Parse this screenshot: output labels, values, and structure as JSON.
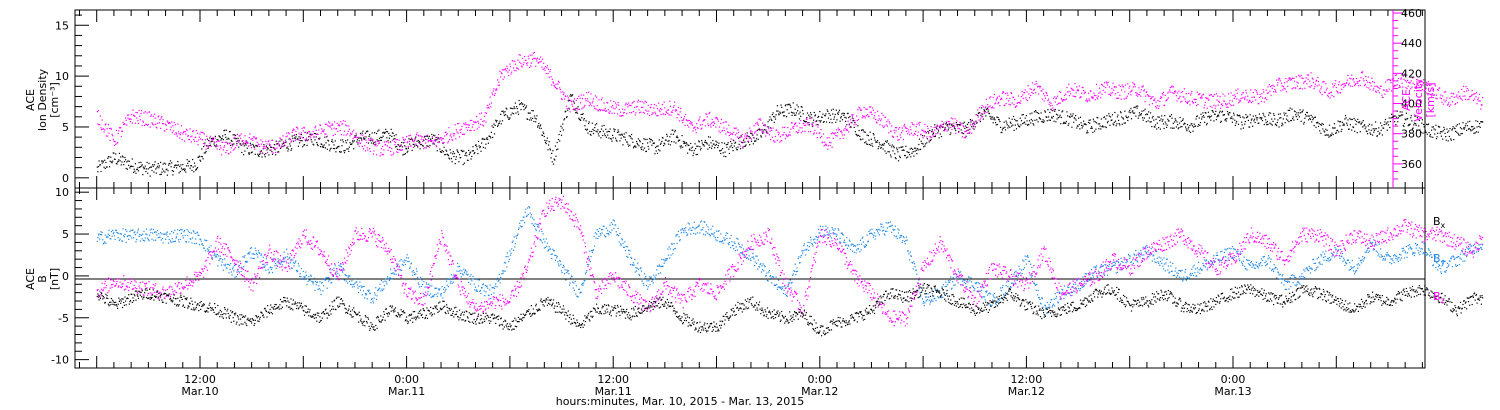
{
  "chart_data": [
    {
      "type": "scatter",
      "panel": "top",
      "ylabel_left": [
        "ACE",
        "Ion Density",
        "[cm⁻³]"
      ],
      "ylabel_right": [
        "ACE",
        "Velocity",
        "[km/s]"
      ],
      "left_ylim": [
        -1,
        16.5
      ],
      "left_ticks": [
        0,
        5,
        10,
        15
      ],
      "right_ylim": [
        344,
        462
      ],
      "right_ticks": [
        360,
        380,
        400,
        420,
        440,
        460
      ],
      "series": [
        {
          "axis": "left",
          "color": "#000000",
          "x_hours": [
            0,
            2,
            4,
            6,
            8,
            10,
            11.5,
            13,
            15,
            17,
            19,
            21,
            23,
            25,
            27,
            29,
            30.5,
            32,
            34,
            35.5,
            37,
            39,
            41,
            43,
            45,
            47,
            49,
            51,
            53,
            55,
            57,
            59,
            61,
            63,
            65,
            67,
            69,
            71,
            73,
            75,
            77,
            79,
            81,
            83,
            85,
            87,
            89,
            91,
            93,
            95,
            97,
            99,
            101,
            103,
            105,
            107,
            109,
            111,
            113,
            115,
            117,
            119,
            121,
            123,
            125,
            127,
            129,
            131,
            133,
            135,
            137,
            139,
            141,
            143,
            145,
            147,
            149,
            151,
            153,
            155,
            157,
            159,
            161
          ],
          "y": [
            0.9,
            2.0,
            1.3,
            0.9,
            1.0,
            1.1,
            1.4,
            3.5,
            4.2,
            3.0,
            2.7,
            3.0,
            3.6,
            4.0,
            3.4,
            3.1,
            4.0,
            4.0,
            4.3,
            3.0,
            3.5,
            3.8,
            2.2,
            2.0,
            3.5,
            6.0,
            7.0,
            6.0,
            2.0,
            8.0,
            5.0,
            4.5,
            4.0,
            3.5,
            3.0,
            4.2,
            2.8,
            3.5,
            2.8,
            3.7,
            4.2,
            6.5,
            6.8,
            5.8,
            6.2,
            6.0,
            4.2,
            3.5,
            2.3,
            2.8,
            4.5,
            5.0,
            4.8,
            6.5,
            5.2,
            5.5,
            6.0,
            6.3,
            5.8,
            5.0,
            5.6,
            6.0,
            6.5,
            5.5,
            5.6,
            5.2,
            6.0,
            6.2,
            5.5,
            6.0,
            5.6,
            6.4,
            5.8,
            4.6,
            5.5,
            5.0,
            4.8,
            6.0,
            5.5,
            4.6,
            4.3,
            5.0,
            5.2
          ]
        },
        {
          "axis": "right",
          "color": "#ff00ff",
          "x_hours": [
            0,
            2,
            4,
            6,
            8,
            10,
            12,
            13,
            15,
            17,
            19,
            21,
            23,
            25,
            27,
            29,
            31,
            33,
            35,
            37,
            39,
            41,
            43,
            45,
            47,
            49,
            51,
            53,
            55,
            57,
            59,
            61,
            63,
            65,
            67,
            69,
            71,
            73,
            75,
            77,
            79,
            81,
            83,
            85,
            87,
            89,
            91,
            93,
            95,
            97,
            99,
            101,
            103,
            105,
            107,
            109,
            111,
            113,
            115,
            117,
            119,
            121,
            123,
            125,
            127,
            129,
            131,
            133,
            135,
            137,
            139,
            141,
            143,
            145,
            147,
            149,
            151,
            153,
            155,
            157,
            159,
            161
          ],
          "y": [
            392,
            376,
            392,
            390,
            386,
            380,
            377,
            374,
            370,
            378,
            372,
            372,
            380,
            380,
            384,
            384,
            374,
            370,
            372,
            376,
            374,
            380,
            386,
            390,
            420,
            428,
            430,
            416,
            398,
            404,
            398,
            396,
            398,
            396,
            398,
            384,
            390,
            384,
            376,
            386,
            378,
            384,
            386,
            374,
            384,
            396,
            390,
            380,
            384,
            380,
            388,
            380,
            398,
            404,
            402,
            412,
            400,
            410,
            406,
            410,
            408,
            410,
            400,
            408,
            404,
            402,
            402,
            406,
            404,
            412,
            414,
            416,
            408,
            414,
            418,
            408,
            416,
            414,
            410,
            402,
            408,
            400
          ]
        }
      ]
    },
    {
      "type": "scatter",
      "panel": "bottom",
      "ylabel_left": [
        "ACE",
        "B",
        "[nT]"
      ],
      "ylim": [
        -11,
        10.5
      ],
      "yticks": [
        -10,
        -5,
        0,
        5,
        10
      ],
      "zero_line": true,
      "legend_placement": "right",
      "x_tick_labels": [
        {
          "x_hours": 12,
          "lines": [
            "12:00",
            "Mar.10"
          ]
        },
        {
          "x_hours": 36,
          "lines": [
            "0:00",
            "Mar.11"
          ]
        },
        {
          "x_hours": 60,
          "lines": [
            "12:00",
            "Mar.11"
          ]
        },
        {
          "x_hours": 84,
          "lines": [
            "0:00",
            "Mar.12"
          ]
        },
        {
          "x_hours": 108,
          "lines": [
            "12:00",
            "Mar.12"
          ]
        },
        {
          "x_hours": 132,
          "lines": [
            "0:00",
            "Mar.13"
          ]
        }
      ],
      "xlabel": "hours:minutes, Mar. 10, 2015 - Mar. 13, 2015",
      "series": [
        {
          "name": "Bx",
          "color": "#000000",
          "x_hours": [
            0,
            2,
            4,
            6,
            8,
            10,
            12,
            14,
            16,
            18,
            20,
            22,
            24,
            26,
            28,
            30,
            32,
            34,
            36,
            38,
            40,
            42,
            44,
            46,
            48,
            50,
            52,
            54,
            56,
            58,
            60,
            62,
            64,
            66,
            68,
            70,
            72,
            74,
            76,
            78,
            80,
            82,
            84,
            86,
            88,
            90,
            92,
            94,
            96,
            98,
            100,
            102,
            104,
            106,
            108,
            110,
            112,
            114,
            116,
            118,
            120,
            122,
            124,
            126,
            128,
            130,
            132,
            134,
            136,
            138,
            140,
            142,
            144,
            146,
            148,
            150,
            152,
            154,
            156,
            158,
            160,
            161
          ],
          "y": [
            -2,
            -3.5,
            -2.5,
            -2,
            -2.5,
            -3,
            -3.5,
            -4,
            -5,
            -5.5,
            -4,
            -3,
            -4,
            -5,
            -3,
            -4.5,
            -6,
            -4,
            -5,
            -4.5,
            -3.5,
            -4.5,
            -5,
            -5,
            -6,
            -4.5,
            -3,
            -4,
            -6,
            -4,
            -4,
            -4.5,
            -3.5,
            -3,
            -5,
            -6,
            -6,
            -4,
            -3,
            -4.5,
            -5,
            -4.5,
            -6.5,
            -5.5,
            -5,
            -4,
            -2,
            -2.5,
            -1.5,
            -2,
            -3,
            -4,
            -3.5,
            -2,
            -3.5,
            -4.5,
            -4,
            -3.5,
            -2,
            -1.5,
            -3.5,
            -3,
            -2,
            -3.5,
            -4,
            -3,
            -2,
            -1.5,
            -2.5,
            -3,
            -1.5,
            -2,
            -3,
            -4,
            -2.5,
            -3,
            -2,
            -1.5,
            -2.5,
            -4,
            -2.5,
            -3
          ]
        },
        {
          "name": "By",
          "color": "#1e88e5",
          "x_hours": [
            0,
            2,
            4,
            6,
            8,
            10,
            12,
            14,
            16,
            18,
            20,
            22,
            24,
            26,
            28,
            30,
            32,
            34,
            36,
            38,
            40,
            42,
            44,
            46,
            48,
            50,
            52,
            54,
            56,
            58,
            60,
            62,
            64,
            66,
            68,
            70,
            72,
            74,
            76,
            78,
            80,
            82,
            84,
            86,
            88,
            90,
            92,
            94,
            96,
            98,
            100,
            102,
            104,
            106,
            108,
            110,
            112,
            114,
            116,
            118,
            120,
            122,
            124,
            126,
            128,
            130,
            132,
            134,
            136,
            138,
            140,
            142,
            144,
            146,
            148,
            150,
            152,
            154,
            156,
            158,
            160,
            161
          ],
          "y": [
            4.5,
            5,
            4.8,
            5,
            4.7,
            5,
            4.5,
            2,
            0.5,
            3,
            1,
            2.5,
            0,
            -1.5,
            1,
            -1,
            -2.5,
            0,
            2,
            -1.5,
            -2,
            1,
            -1,
            -2,
            3,
            8,
            4,
            1,
            -2,
            5,
            6,
            2,
            -1,
            2,
            5.5,
            6,
            5,
            4,
            2.5,
            0,
            -2,
            3,
            5.5,
            5,
            3,
            5,
            6,
            4,
            -3,
            -2,
            0,
            -1,
            -3,
            -1,
            2,
            -4,
            -2,
            -1,
            0.5,
            1,
            2,
            3,
            1.5,
            0,
            1,
            2,
            3,
            1,
            2,
            -1,
            0,
            2,
            3,
            1,
            4,
            2,
            3,
            3.5,
            1,
            2,
            3.5,
            4
          ]
        },
        {
          "name": "Bz",
          "color": "#ff00ff",
          "x_hours": [
            0,
            2,
            4,
            6,
            8,
            10,
            12,
            14,
            16,
            18,
            20,
            22,
            24,
            26,
            28,
            30,
            32,
            34,
            36,
            38,
            40,
            42,
            44,
            46,
            48,
            50,
            52,
            54,
            56,
            58,
            60,
            62,
            64,
            66,
            68,
            70,
            72,
            74,
            76,
            78,
            80,
            82,
            84,
            86,
            88,
            90,
            92,
            94,
            96,
            98,
            100,
            102,
            104,
            106,
            108,
            110,
            112,
            114,
            116,
            118,
            120,
            122,
            124,
            126,
            128,
            130,
            132,
            134,
            136,
            138,
            140,
            142,
            144,
            146,
            148,
            150,
            152,
            154,
            156,
            158,
            160,
            161
          ],
          "y": [
            -2,
            -0.5,
            -1,
            -1.5,
            -2,
            -1,
            0,
            4,
            2,
            -1,
            3,
            1,
            5,
            3,
            0,
            5,
            5,
            3,
            -2,
            -3,
            5,
            -1,
            -4,
            -3,
            -3,
            1,
            8,
            9,
            6,
            -2,
            0,
            -2,
            -4,
            -1,
            -3,
            -1,
            -2,
            1,
            4,
            5,
            -1,
            -4,
            5,
            4,
            0,
            -2,
            -5,
            -5,
            1,
            4,
            0,
            -3,
            1,
            0,
            -1,
            3,
            -2,
            -1,
            0,
            2,
            1,
            3,
            4,
            5,
            3,
            1,
            2,
            5,
            4,
            2,
            5,
            5,
            3,
            5,
            4,
            5,
            6,
            5,
            5,
            4,
            3,
            5
          ]
        }
      ]
    }
  ]
}
